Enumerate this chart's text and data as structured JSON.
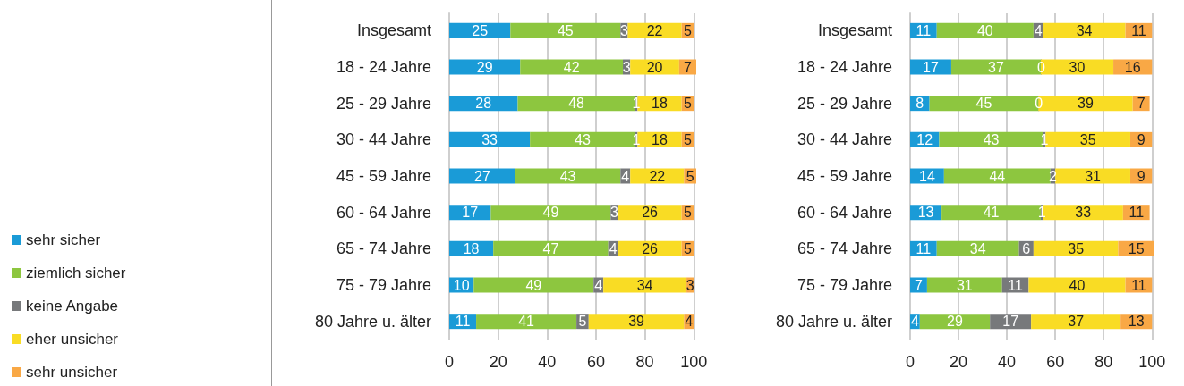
{
  "chart_data": [
    {
      "type": "bar",
      "orientation": "horizontal",
      "stacked": true,
      "data_labels": true,
      "legend": "left",
      "grid": "x",
      "xlim": [
        0,
        101
      ],
      "xticks": [
        0,
        20,
        40,
        60,
        80,
        100
      ],
      "categories": [
        "Insgesamt",
        "18 - 24 Jahre",
        "25 - 29 Jahre",
        "30 - 44 Jahre",
        "45 - 59 Jahre",
        "60 - 64 Jahre",
        "65 - 74 Jahre",
        "75 - 79 Jahre",
        "80 Jahre u. älter"
      ],
      "series": [
        {
          "name": "sehr sicher",
          "color": "#1a9bd7",
          "values": [
            25,
            29,
            28,
            33,
            27,
            17,
            18,
            10,
            11
          ]
        },
        {
          "name": "ziemlich sicher",
          "color": "#8dc63f",
          "values": [
            45,
            42,
            48,
            43,
            43,
            49,
            47,
            49,
            41
          ]
        },
        {
          "name": "keine Angabe",
          "color": "#77797b",
          "values": [
            3,
            3,
            1,
            1,
            4,
            3,
            4,
            4,
            5
          ]
        },
        {
          "name": "eher unsicher",
          "color": "#f9dc24",
          "values": [
            22,
            20,
            18,
            18,
            22,
            26,
            26,
            34,
            39
          ]
        },
        {
          "name": "sehr unsicher",
          "color": "#f9a845",
          "values": [
            5,
            7,
            5,
            5,
            5,
            5,
            5,
            3,
            4
          ]
        }
      ]
    },
    {
      "type": "bar",
      "orientation": "horizontal",
      "stacked": true,
      "data_labels": true,
      "grid": "x",
      "xlim": [
        0,
        101
      ],
      "xticks": [
        0,
        20,
        40,
        60,
        80,
        100
      ],
      "categories": [
        "Insgesamt",
        "18 - 24 Jahre",
        "25 - 29 Jahre",
        "30 - 44 Jahre",
        "45 - 59 Jahre",
        "60 - 64 Jahre",
        "65 - 74 Jahre",
        "75 - 79 Jahre",
        "80 Jahre u. älter"
      ],
      "series": [
        {
          "color": "#1a9bd7",
          "values": [
            11,
            17,
            8,
            12,
            14,
            13,
            11,
            7,
            4
          ]
        },
        {
          "color": "#8dc63f",
          "values": [
            40,
            37,
            45,
            43,
            44,
            41,
            34,
            31,
            29
          ]
        },
        {
          "color": "#77797b",
          "values": [
            4,
            0,
            0,
            1,
            2,
            1,
            6,
            11,
            17
          ]
        },
        {
          "color": "#f9dc24",
          "values": [
            34,
            30,
            39,
            35,
            31,
            33,
            35,
            40,
            37
          ]
        },
        {
          "color": "#f9a845",
          "values": [
            11,
            16,
            7,
            9,
            9,
            11,
            15,
            11,
            13
          ]
        }
      ]
    }
  ]
}
